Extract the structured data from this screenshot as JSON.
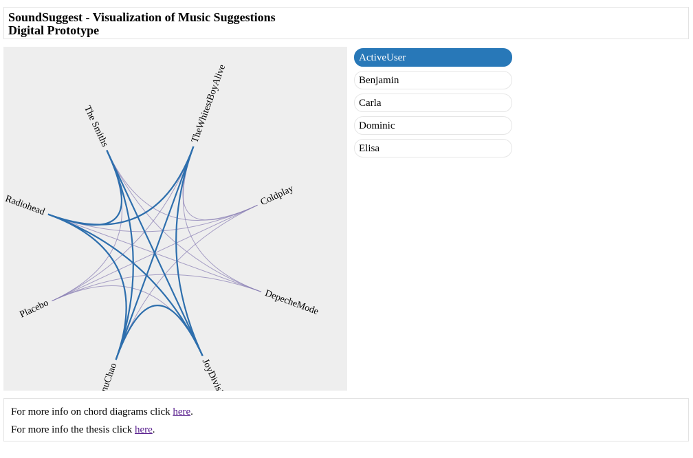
{
  "header": {
    "title": "SoundSuggest - Visualization of Music Suggestions",
    "subtitle": "Digital Prototype"
  },
  "users": [
    {
      "label": "ActiveUser",
      "active": true
    },
    {
      "label": "Benjamin",
      "active": false
    },
    {
      "label": "Carla",
      "active": false
    },
    {
      "label": "Dominic",
      "active": false
    },
    {
      "label": "Elisa",
      "active": false
    }
  ],
  "chord": {
    "artists": [
      "TheWhitestBoyAlive",
      "Coldplay",
      "DepecheMode",
      "JoyDivision",
      "ManuChao",
      "Placebo",
      "Radiohead",
      "The Smiths"
    ],
    "strong_links": [
      [
        0,
        3
      ],
      [
        0,
        4
      ],
      [
        0,
        6
      ],
      [
        7,
        3
      ],
      [
        7,
        4
      ],
      [
        7,
        6
      ],
      [
        6,
        3
      ],
      [
        6,
        4
      ],
      [
        3,
        4
      ]
    ],
    "weak_links": [
      [
        1,
        6
      ],
      [
        1,
        7
      ],
      [
        1,
        0
      ],
      [
        1,
        5
      ],
      [
        1,
        4
      ],
      [
        2,
        0
      ],
      [
        2,
        7
      ],
      [
        2,
        6
      ],
      [
        2,
        5
      ],
      [
        5,
        3
      ],
      [
        5,
        7
      ],
      [
        5,
        0
      ]
    ],
    "colors": {
      "strong": "#2e6fad",
      "weak": "#8c82b5",
      "background": "#eeeeee"
    }
  },
  "footer": {
    "line1_text": "For more info on chord diagrams click ",
    "line1_link": "here",
    "line2_text": "For more info the thesis click ",
    "line2_link": "here",
    "period": "."
  }
}
